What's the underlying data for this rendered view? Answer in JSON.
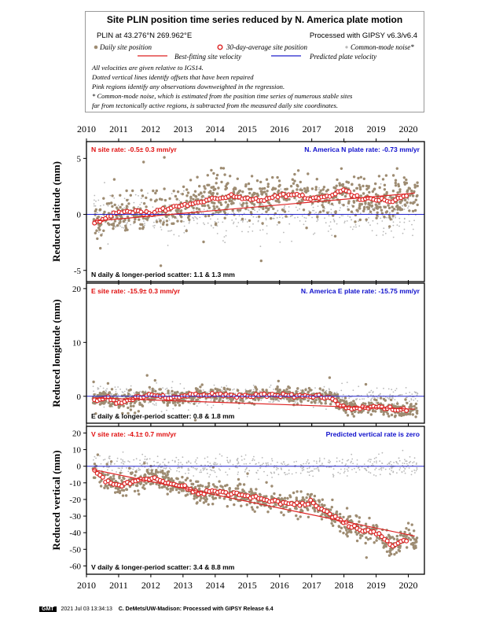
{
  "legend": {
    "title": "Site PLIN position time series reduced by N. America plate motion",
    "site_label": "PLIN at 43.276°N 269.962°E",
    "processed": "Processed with GIPSY v6.3/v6.4",
    "daily_label": "Daily site position",
    "avg_label": "30-day-average site position",
    "cm_label": "Common-mode noise*",
    "fit_label": "Best-fitting site velocity",
    "pred_label": "Predicted plate velocity",
    "notes": [
      "All velocities are given relative to IGS14.",
      "Dotted vertical lines identify offsets that have been repaired",
      "Pink regions identify any observations downweighted in the regression.",
      "* Common-mode noise, which is estimated from the position time series of numerous stable sites",
      "far from tectonically active regions, is subtracted from the measured daily site coordinates."
    ]
  },
  "colors": {
    "daily": "#9e8c72",
    "common_mode": "#b8b8b8",
    "fit": "#dd2222",
    "predicted": "#2222cc",
    "rate_red": "#e01010",
    "rate_blue": "#1010cc"
  },
  "footer": {
    "logo": "GMT",
    "timestamp": "2021 Jul 03 13:34:13",
    "credit": "C. DeMets/UW-Madison: Processed with GIPSY Release 6.4"
  },
  "chart_data": [
    {
      "type": "scatter",
      "component": "N",
      "ylabel": "Reduced latitude (mm)",
      "xlim": [
        2010.0,
        2020.5
      ],
      "ylim": [
        -6,
        6.5
      ],
      "yticks": [
        -5,
        0,
        5
      ],
      "xticks": [
        2010,
        2011,
        2012,
        2013,
        2014,
        2015,
        2016,
        2017,
        2018,
        2019,
        2020
      ],
      "rate_label": "N site rate:  -0.5± 0.3 mm/yr",
      "plate_label": "N. America N plate rate:  -0.73 mm/yr",
      "scatter_label": "N daily & longer-period scatter:   1.1 &   1.3 mm",
      "fit_line": {
        "x": [
          2010.2,
          2020.2
        ],
        "y": [
          -0.6,
          1.9
        ]
      },
      "avg_x": [
        2010.25,
        2010.6,
        2011.0,
        2011.5,
        2012.0,
        2012.5,
        2013.0,
        2013.5,
        2014.0,
        2014.5,
        2015.0,
        2015.5,
        2016.0,
        2016.5,
        2017.0,
        2017.5,
        2018.0,
        2018.5,
        2019.0,
        2019.5,
        2020.0
      ],
      "avg_y": [
        -0.8,
        -0.3,
        0.2,
        0.3,
        0.1,
        0.5,
        0.9,
        1.0,
        1.5,
        1.6,
        1.4,
        1.3,
        1.6,
        1.8,
        1.4,
        1.6,
        2.1,
        1.5,
        1.3,
        1.1,
        1.8
      ]
    },
    {
      "type": "scatter",
      "component": "E",
      "ylabel": "Reduced longitude (mm)",
      "xlim": [
        2010.0,
        2020.5
      ],
      "ylim": [
        -5,
        21
      ],
      "yticks": [
        0,
        10,
        20
      ],
      "xticks": [
        2010,
        2011,
        2012,
        2013,
        2014,
        2015,
        2016,
        2017,
        2018,
        2019,
        2020
      ],
      "rate_label": "E site rate:  -15.9± 0.3 mm/yr",
      "plate_label": "N. America E plate rate:  -15.75 mm/yr",
      "scatter_label": "E daily & longer-period scatter:   0.8 &   1.8 mm",
      "fit_line": {
        "x": [
          2010.2,
          2020.2
        ],
        "y": [
          -0.3,
          -2.4
        ]
      },
      "avg_x": [
        2010.25,
        2010.6,
        2011.0,
        2011.5,
        2012.0,
        2012.5,
        2013.0,
        2013.5,
        2014.0,
        2014.5,
        2015.0,
        2015.5,
        2016.0,
        2016.5,
        2017.0,
        2017.5,
        2018.0,
        2018.5,
        2019.0,
        2019.5,
        2020.0
      ],
      "avg_y": [
        -0.8,
        -0.2,
        -1.3,
        -0.5,
        0.3,
        -0.4,
        0.0,
        0.2,
        0.4,
        0.1,
        0.0,
        0.3,
        0.2,
        0.0,
        0.1,
        -0.2,
        -2.0,
        -2.3,
        -1.8,
        -2.5,
        -2.6
      ]
    },
    {
      "type": "scatter",
      "component": "V",
      "ylabel": "Reduced vertical (mm)",
      "xlim": [
        2010.0,
        2020.5
      ],
      "ylim": [
        -65,
        24
      ],
      "yticks": [
        -60,
        -50,
        -40,
        -30,
        -20,
        -10,
        0,
        10,
        20
      ],
      "xticks": [
        2010,
        2011,
        2012,
        2013,
        2014,
        2015,
        2016,
        2017,
        2018,
        2019,
        2020
      ],
      "rate_label": "V site rate:  -4.1± 0.7 mm/yr",
      "plate_label": "Predicted vertical rate is zero",
      "scatter_label": "V daily & longer-period scatter:   3.4 &   8.8 mm",
      "fit_line": {
        "x": [
          2010.2,
          2020.2
        ],
        "y": [
          -2.0,
          -42.0
        ]
      },
      "avg_x": [
        2010.25,
        2010.6,
        2011.0,
        2011.5,
        2012.0,
        2012.5,
        2013.0,
        2013.5,
        2014.0,
        2014.5,
        2015.0,
        2015.5,
        2016.0,
        2016.5,
        2017.0,
        2017.5,
        2018.0,
        2018.5,
        2019.0,
        2019.5,
        2020.0
      ],
      "avg_y": [
        -3,
        -9,
        -12,
        -9,
        -7,
        -10,
        -12,
        -16,
        -15,
        -16,
        -18,
        -20,
        -22,
        -23,
        -22,
        -28,
        -34,
        -38,
        -40,
        -48,
        -44
      ]
    }
  ]
}
